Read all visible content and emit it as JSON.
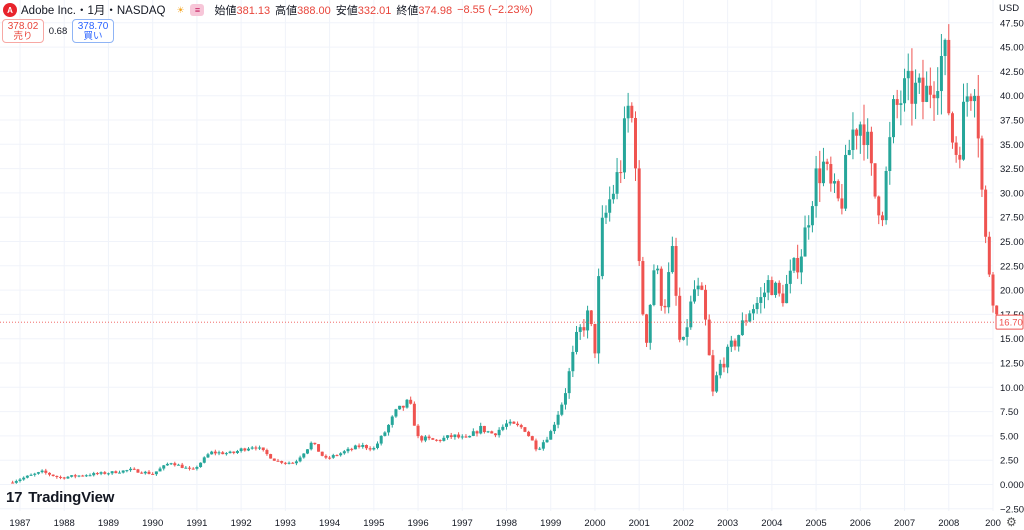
{
  "legend": {
    "logo_letter": "A",
    "symbol": "Adobe Inc.・1月・NASDAQ",
    "icons": [
      "sun-icon",
      "bars-icon"
    ],
    "open_label": "始値",
    "open": "381.13",
    "high_label": "高値",
    "high": "388.00",
    "low_label": "安値",
    "low": "332.01",
    "close_label": "終値",
    "close": "374.98",
    "change": "−8.55 (−2.23%)"
  },
  "trade": {
    "sell_price": "378.02",
    "sell_label": "売り",
    "spread": "0.68",
    "buy_price": "378.70",
    "buy_label": "買い"
  },
  "branding": {
    "name": "TradingView"
  },
  "chart_data": {
    "type": "candlestick",
    "currency": "USD",
    "last_price": "16.70",
    "y_ticks": [
      "47.50",
      "45.00",
      "42.50",
      "40.00",
      "37.50",
      "35.00",
      "32.50",
      "30.00",
      "27.50",
      "25.00",
      "22.50",
      "20.00",
      "17.50",
      "15.00",
      "12.50",
      "10.00",
      "7.50",
      "5.00",
      "2.50",
      "0.0000",
      "−2.50"
    ],
    "x_ticks": [
      "1987",
      "1988",
      "1989",
      "1990",
      "1991",
      "1992",
      "1993",
      "1994",
      "1995",
      "1996",
      "1997",
      "1998",
      "1999",
      "2000",
      "2001",
      "2002",
      "2003",
      "2004",
      "2005",
      "2006",
      "2007",
      "2008",
      "200"
    ],
    "ylim": [
      -2.5,
      48.5
    ],
    "colors": {
      "up": "#26a69a",
      "down": "#ef5350",
      "grid": "#f0f3fa",
      "text": "#131722"
    },
    "anchors": [
      [
        1986.75,
        0.2
      ],
      [
        1987.5,
        1.3
      ],
      [
        1987.9,
        0.7
      ],
      [
        1988.5,
        1.0
      ],
      [
        1989.0,
        1.2
      ],
      [
        1989.5,
        1.5
      ],
      [
        1990.0,
        1.1
      ],
      [
        1990.4,
        2.3
      ],
      [
        1990.9,
        1.4
      ],
      [
        1991.3,
        3.3
      ],
      [
        1991.8,
        3.2
      ],
      [
        1992.0,
        3.6
      ],
      [
        1992.3,
        4.0
      ],
      [
        1992.8,
        2.4
      ],
      [
        1993.2,
        2.2
      ],
      [
        1993.6,
        4.3
      ],
      [
        1993.9,
        2.6
      ],
      [
        1994.3,
        3.3
      ],
      [
        1994.7,
        4.0
      ],
      [
        1995.0,
        3.7
      ],
      [
        1995.2,
        5.0
      ],
      [
        1995.5,
        7.4
      ],
      [
        1995.8,
        8.5
      ],
      [
        1996.0,
        4.8
      ],
      [
        1996.4,
        4.5
      ],
      [
        1996.8,
        5.0
      ],
      [
        1997.1,
        4.6
      ],
      [
        1997.4,
        5.8
      ],
      [
        1997.7,
        5.2
      ],
      [
        1998.0,
        6.2
      ],
      [
        1998.4,
        5.8
      ],
      [
        1998.7,
        3.6
      ],
      [
        1999.0,
        5.4
      ],
      [
        1999.3,
        9.0
      ],
      [
        1999.6,
        15.2
      ],
      [
        1999.85,
        17.4
      ],
      [
        2000.0,
        14.0
      ],
      [
        2000.15,
        26.0
      ],
      [
        2000.35,
        29.5
      ],
      [
        2000.55,
        32.0
      ],
      [
        2000.75,
        38.5
      ],
      [
        2000.9,
        36.5
      ],
      [
        2001.0,
        22.0
      ],
      [
        2001.15,
        14.5
      ],
      [
        2001.35,
        23.0
      ],
      [
        2001.55,
        18.0
      ],
      [
        2001.75,
        23.5
      ],
      [
        2001.95,
        13.0
      ],
      [
        2002.1,
        17.0
      ],
      [
        2002.25,
        20.0
      ],
      [
        2002.4,
        19.5
      ],
      [
        2002.55,
        15.0
      ],
      [
        2002.65,
        9.0
      ],
      [
        2002.8,
        12.0
      ],
      [
        2002.95,
        13.0
      ],
      [
        2003.2,
        15.0
      ],
      [
        2003.5,
        18.0
      ],
      [
        2003.75,
        19.0
      ],
      [
        2003.95,
        21.0
      ],
      [
        2004.2,
        19.0
      ],
      [
        2004.45,
        21.5
      ],
      [
        2004.7,
        24.5
      ],
      [
        2004.95,
        31.0
      ],
      [
        2005.15,
        33.0
      ],
      [
        2005.35,
        30.0
      ],
      [
        2005.55,
        28.5
      ],
      [
        2005.8,
        36.0
      ],
      [
        2005.95,
        37.5
      ],
      [
        2006.1,
        37.0
      ],
      [
        2006.3,
        30.0
      ],
      [
        2006.5,
        28.5
      ],
      [
        2006.75,
        38.0
      ],
      [
        2006.95,
        40.0
      ],
      [
        2007.2,
        40.5
      ],
      [
        2007.45,
        39.5
      ],
      [
        2007.7,
        42.5
      ],
      [
        2007.9,
        44.5
      ],
      [
        2008.05,
        36.0
      ],
      [
        2008.2,
        34.0
      ],
      [
        2008.4,
        40.0
      ],
      [
        2008.6,
        42.5
      ],
      [
        2008.8,
        26.0
      ],
      [
        2008.95,
        21.0
      ],
      [
        2009.1,
        16.7
      ]
    ]
  }
}
